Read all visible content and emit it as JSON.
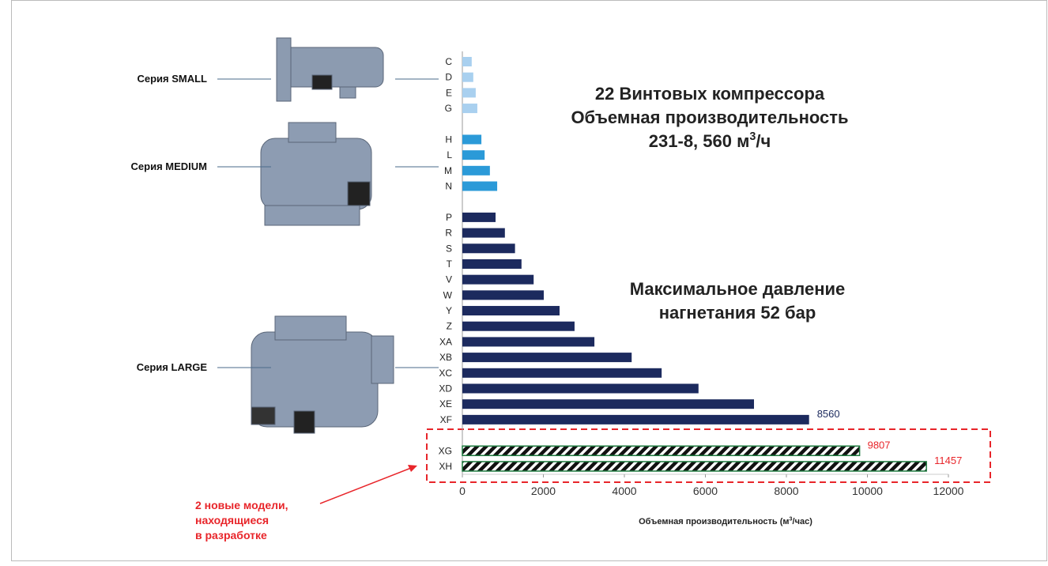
{
  "chart_data": {
    "type": "barh",
    "title": {
      "lines": [
        "22 Винтовых компрессора",
        "Объемная производительность"
      ],
      "last": {
        "text": "231-8, 560 м",
        "sup": "3",
        "tail": "/ч"
      }
    },
    "annotation": [
      "Максимальное давление",
      "нагнетания 52 бар"
    ],
    "note": [
      "2 новые модели,",
      "находящиеся",
      "в разработке"
    ],
    "xlabel": {
      "text": "Объемная производительность (м",
      "sup": "3",
      "tail": "/час)"
    },
    "categories": [
      "C",
      "D",
      "E",
      "G",
      null,
      "H",
      "L",
      "M",
      "N",
      null,
      "P",
      "R",
      "S",
      "T",
      "V",
      "W",
      "Y",
      "Z",
      "XA",
      "XB",
      "XC",
      "XD",
      "XE",
      "XF",
      null,
      "XG",
      "XH"
    ],
    "series": [
      {
        "name": "Серия SMALL",
        "color": "#a9d0ef",
        "data_labels": "none",
        "values": [
          231,
          270,
          330,
          370,
          null,
          null,
          null,
          null,
          null,
          null,
          null,
          null,
          null,
          null,
          null,
          null,
          null,
          null,
          null,
          null,
          null,
          null,
          null,
          null,
          null,
          null,
          null
        ]
      },
      {
        "name": "Серия MEDIUM",
        "color": "#2b9ad8",
        "data_labels": "none",
        "values": [
          null,
          null,
          null,
          null,
          null,
          470,
          550,
          680,
          860,
          null,
          null,
          null,
          null,
          null,
          null,
          null,
          null,
          null,
          null,
          null,
          null,
          null,
          null,
          null,
          null,
          null,
          null
        ]
      },
      {
        "name": "Серия LARGE",
        "color": "#1c2a5e",
        "data_labels": "max",
        "values": [
          null,
          null,
          null,
          null,
          null,
          null,
          null,
          null,
          null,
          null,
          820,
          1050,
          1300,
          1460,
          1760,
          2010,
          2400,
          2770,
          3260,
          4180,
          4920,
          5830,
          7200,
          8560,
          null,
          null,
          null
        ]
      },
      {
        "color": "#1d7a3e",
        "label_color": "#e8252a",
        "hatched": true,
        "data_labels": "all",
        "values": [
          null,
          null,
          null,
          null,
          null,
          null,
          null,
          null,
          null,
          null,
          null,
          null,
          null,
          null,
          null,
          null,
          null,
          null,
          null,
          null,
          null,
          null,
          null,
          null,
          null,
          9807,
          11457
        ]
      }
    ],
    "xlim": [
      0,
      12000
    ],
    "xticks": [
      0,
      2000,
      4000,
      6000,
      8000,
      10000,
      12000
    ]
  }
}
